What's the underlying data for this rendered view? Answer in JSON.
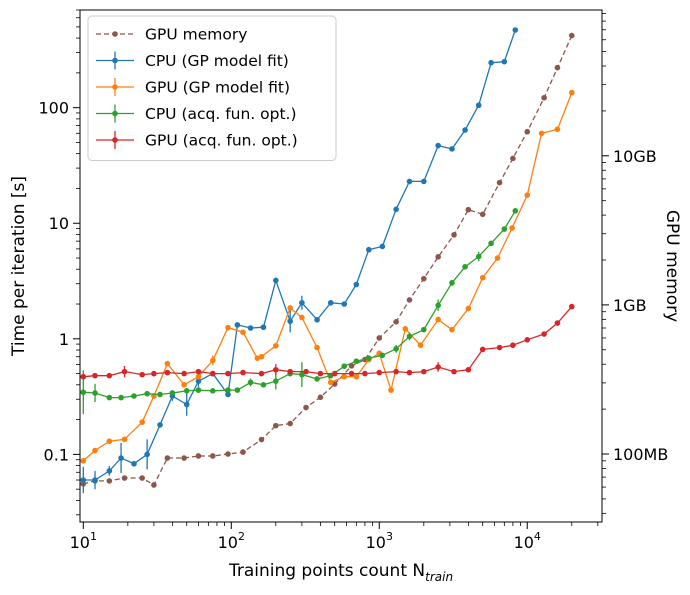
{
  "chart_data": {
    "type": "line",
    "xlabel": "Training points count N",
    "xlabel_subscript": "train",
    "ylabel": "Time per iteration [s]",
    "y2label": "GPU memory",
    "xscale": "log",
    "yscale": "log",
    "xlim": [
      9.5,
      32000
    ],
    "ylim": [
      0.026,
      700
    ],
    "y2lim_bytes": [
      35000000.0,
      95000000000.0
    ],
    "x_ticks": [
      {
        "value": 10,
        "base": "10",
        "exp": "1"
      },
      {
        "value": 100,
        "base": "10",
        "exp": "2"
      },
      {
        "value": 1000,
        "base": "10",
        "exp": "3"
      },
      {
        "value": 10000,
        "base": "10",
        "exp": "4"
      }
    ],
    "y_ticks": [
      {
        "value": 0.1,
        "label": "0.1"
      },
      {
        "value": 1,
        "label": "1"
      },
      {
        "value": 10,
        "label": "10"
      },
      {
        "value": 100,
        "label": "100"
      }
    ],
    "y2_ticks": [
      {
        "value": 100000000.0,
        "label": "100MB"
      },
      {
        "value": 1000000000.0,
        "label": "1GB"
      },
      {
        "value": 10000000000.0,
        "label": "10GB"
      }
    ],
    "legend": {
      "location": "top-left"
    },
    "series": [
      {
        "name": "GPU memory",
        "axis": "right",
        "color": "#8c564b",
        "dashed": true,
        "x": [
          10,
          12,
          15,
          19,
          25,
          30,
          37,
          48,
          60,
          75,
          95,
          120,
          160,
          200,
          250,
          320,
          400,
          500,
          650,
          800,
          1000,
          1300,
          1600,
          2000,
          2500,
          3200,
          4000,
          5000,
          6500,
          8000,
          10000,
          13000,
          16000,
          20000
        ],
        "values": [
          63000000.0,
          66000000.0,
          66000000.0,
          69000000.0,
          69000000.0,
          62000000.0,
          94000000.0,
          94000000.0,
          97000000.0,
          97000000.0,
          100000000.0,
          103000000.0,
          125000000.0,
          155000000.0,
          160000000.0,
          205000000.0,
          240000000.0,
          295000000.0,
          390000000.0,
          430000000.0,
          600000000.0,
          770000000.0,
          1080000000.0,
          1500000000.0,
          2100000000.0,
          2950000000.0,
          4350000000.0,
          4050000000.0,
          6600000000.0,
          9600000000.0,
          14500000000.0,
          24500000000.0,
          39000000000.0,
          64000000000.0
        ]
      },
      {
        "name": "CPU (GP model fit)",
        "axis": "left",
        "color": "#1f77b4",
        "x": [
          10,
          12,
          15,
          18,
          22,
          27,
          33,
          40,
          50,
          60,
          75,
          95,
          110,
          135,
          165,
          200,
          250,
          300,
          380,
          470,
          580,
          700,
          850,
          1050,
          1300,
          1600,
          2000,
          2500,
          3100,
          3800,
          4700,
          5700,
          7000,
          8300
        ],
        "values": [
          0.06,
          0.06,
          0.072,
          0.093,
          0.083,
          0.1,
          0.18,
          0.32,
          0.27,
          0.43,
          0.5,
          0.33,
          1.32,
          1.24,
          1.26,
          3.2,
          1.42,
          2.05,
          1.46,
          2.05,
          2.0,
          2.95,
          5.9,
          6.3,
          13.2,
          23,
          23,
          47,
          44,
          64,
          105,
          245,
          250,
          470
        ],
        "err": [
          1.3,
          1.2,
          1.1,
          1.35,
          1.06,
          1.35,
          1.05,
          1.1,
          1.25,
          1.12,
          1.05,
          1.05,
          1.04,
          1.04,
          1.04,
          1.06,
          1.25,
          1.15,
          1.04,
          1.03,
          1.03,
          1.03,
          1.04,
          1.03,
          1.03,
          1.03,
          1.03,
          1.03,
          1.03,
          1.03,
          1.03,
          1.03,
          1.03,
          1.03
        ]
      },
      {
        "name": "GPU (GP model fit)",
        "axis": "left",
        "color": "#ff7f0e",
        "x": [
          10,
          12,
          15,
          19,
          25,
          30,
          37,
          48,
          60,
          75,
          95,
          120,
          150,
          160,
          200,
          250,
          300,
          380,
          470,
          580,
          700,
          850,
          1000,
          1200,
          1500,
          1900,
          2500,
          3100,
          4000,
          5000,
          6300,
          7900,
          10000,
          12500,
          16000,
          20000
        ],
        "values": [
          0.088,
          0.108,
          0.13,
          0.135,
          0.19,
          0.32,
          0.61,
          0.4,
          0.47,
          0.65,
          1.25,
          1.14,
          0.68,
          0.7,
          0.87,
          1.85,
          1.53,
          0.84,
          0.42,
          0.47,
          0.47,
          0.66,
          0.75,
          0.36,
          1.22,
          0.88,
          1.47,
          1.2,
          1.83,
          3.38,
          5.0,
          9.1,
          17.5,
          60,
          65,
          135
        ],
        "err": [
          1.05,
          1.04,
          1.04,
          1.04,
          1.04,
          1.04,
          1.05,
          1.04,
          1.04,
          1.1,
          1.04,
          1.04,
          1.04,
          1.04,
          1.04,
          1.04,
          1.04,
          1.04,
          1.04,
          1.04,
          1.04,
          1.04,
          1.04,
          1.05,
          1.06,
          1.04,
          1.04,
          1.04,
          1.04,
          1.04,
          1.04,
          1.04,
          1.04,
          1.04,
          1.04,
          1.04
        ]
      },
      {
        "name": "CPU (acq. fun. opt.)",
        "axis": "left",
        "color": "#2ca02c",
        "x": [
          10,
          12,
          15,
          18,
          22,
          27,
          33,
          40,
          50,
          60,
          75,
          95,
          110,
          135,
          165,
          200,
          250,
          300,
          380,
          470,
          580,
          700,
          850,
          1050,
          1300,
          1600,
          2000,
          2500,
          3100,
          3800,
          4700,
          5700,
          7000,
          8300
        ],
        "values": [
          0.345,
          0.34,
          0.31,
          0.31,
          0.32,
          0.335,
          0.33,
          0.34,
          0.355,
          0.36,
          0.355,
          0.36,
          0.36,
          0.42,
          0.4,
          0.43,
          0.5,
          0.49,
          0.45,
          0.48,
          0.58,
          0.64,
          0.68,
          0.72,
          0.82,
          1.05,
          1.2,
          1.95,
          3.05,
          4.2,
          5.15,
          6.7,
          8.9,
          12.8
        ],
        "err": [
          1.55,
          1.2,
          1.05,
          1.05,
          1.04,
          1.04,
          1.04,
          1.04,
          1.06,
          1.06,
          1.05,
          1.04,
          1.04,
          1.08,
          1.04,
          1.18,
          1.06,
          1.28,
          1.05,
          1.05,
          1.05,
          1.04,
          1.04,
          1.04,
          1.08,
          1.08,
          1.04,
          1.12,
          1.06,
          1.04,
          1.1,
          1.04,
          1.04,
          1.04
        ]
      },
      {
        "name": "GPU (acq. fun. opt.)",
        "axis": "left",
        "color": "#d62728",
        "x": [
          10,
          12,
          15,
          19,
          25,
          30,
          37,
          48,
          60,
          75,
          95,
          120,
          160,
          200,
          250,
          320,
          400,
          500,
          650,
          800,
          1000,
          1300,
          1600,
          2000,
          2500,
          3200,
          4000,
          5000,
          6500,
          8000,
          10000,
          13000,
          16000,
          20000
        ],
        "values": [
          0.47,
          0.48,
          0.48,
          0.52,
          0.49,
          0.5,
          0.51,
          0.5,
          0.52,
          0.5,
          0.5,
          0.51,
          0.5,
          0.54,
          0.52,
          0.52,
          0.5,
          0.5,
          0.5,
          0.5,
          0.51,
          0.52,
          0.51,
          0.52,
          0.57,
          0.52,
          0.54,
          0.81,
          0.84,
          0.88,
          0.98,
          1.1,
          1.37,
          1.9
        ],
        "err": [
          1.04,
          1.04,
          1.04,
          1.12,
          1.04,
          1.04,
          1.04,
          1.04,
          1.04,
          1.04,
          1.04,
          1.04,
          1.04,
          1.12,
          1.04,
          1.04,
          1.04,
          1.04,
          1.04,
          1.04,
          1.04,
          1.04,
          1.04,
          1.04,
          1.1,
          1.04,
          1.04,
          1.04,
          1.04,
          1.04,
          1.04,
          1.04,
          1.04,
          1.04
        ]
      }
    ]
  }
}
